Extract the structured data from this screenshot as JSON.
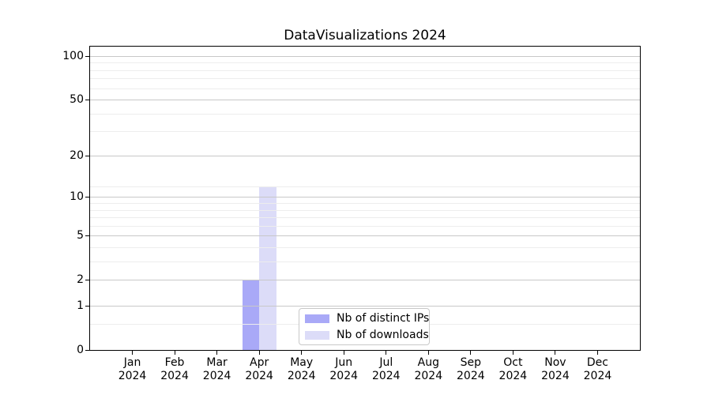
{
  "figure": {
    "title": "DataVisualizations 2024"
  },
  "chart_data": {
    "type": "bar",
    "title": "DataVisualizations 2024",
    "x_tick_labels": [
      "Jan 2024",
      "Feb 2024",
      "Mar 2024",
      "Apr 2024",
      "May 2024",
      "Jun 2024",
      "Jul 2024",
      "Aug 2024",
      "Sep 2024",
      "Oct 2024",
      "Nov 2024",
      "Dec 2024"
    ],
    "series": [
      {
        "name": "Nb of distinct IPs",
        "color": "#a9a9f7",
        "values": [
          0,
          0,
          0,
          2,
          0,
          0,
          0,
          0,
          0,
          0,
          0,
          0
        ]
      },
      {
        "name": "Nb of downloads",
        "color": "#dcdcf8",
        "values": [
          0,
          0,
          0,
          12,
          0,
          0,
          0,
          0,
          0,
          0,
          0,
          0
        ]
      }
    ],
    "yscale": "log1p",
    "ylim": [
      0,
      117
    ],
    "y_major_ticks": [
      0,
      1,
      2,
      5,
      10,
      20,
      50,
      100
    ],
    "y_minor_ticks": [
      0.5,
      3,
      4,
      6,
      7,
      8,
      9,
      12,
      30,
      40,
      60,
      70,
      80,
      90
    ],
    "grid": "horizontal",
    "legend": {
      "position": "lower center",
      "items": [
        "Nb of distinct IPs",
        "Nb of downloads"
      ]
    }
  },
  "colors": {
    "background": "#ffffff",
    "spine": "#000000",
    "grid_major": "#c8c8c8",
    "grid_minor": "#ededed",
    "bar_distinct_ips": "#a9a9f7",
    "bar_downloads": "#dcdcf8",
    "legend_border": "#c8c8c8",
    "text": "#000000"
  }
}
